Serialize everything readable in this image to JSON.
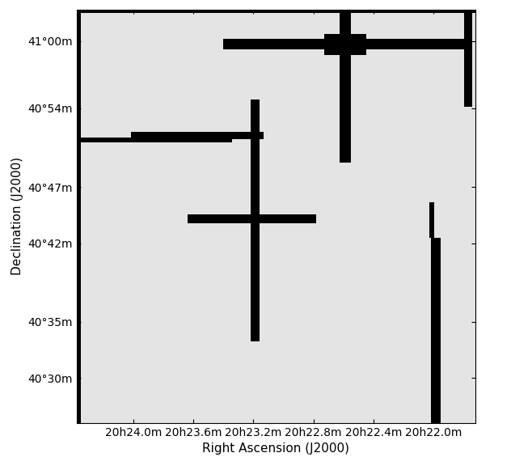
{
  "chart_data": {
    "type": "image",
    "xlabel": "Right Ascension (J2000)",
    "ylabel": "Declination (J2000)",
    "color": "#e4e4e4",
    "xlim": [
      1224.379,
      1221.72
    ],
    "ylim": [
      40.4333,
      41.0467
    ],
    "xticks": [
      {
        "value": 1224.0,
        "label": "20h24.0m"
      },
      {
        "value": 1223.6,
        "label": "20h23.6m"
      },
      {
        "value": 1223.2,
        "label": "20h23.2m"
      },
      {
        "value": 1222.8,
        "label": "20h22.8m"
      },
      {
        "value": 1222.4,
        "label": "20h22.4m"
      },
      {
        "value": 1222.0,
        "label": "20h22.0m"
      }
    ],
    "yticks": [
      {
        "value": 41.0,
        "label": "41°00m"
      },
      {
        "value": 40.9,
        "label": "40°54m"
      },
      {
        "value": 40.7833,
        "label": "40°47m"
      },
      {
        "value": 40.7,
        "label": "40°42m"
      },
      {
        "value": 40.5833,
        "label": "40°35m"
      },
      {
        "value": 40.5,
        "label": "40°30m"
      }
    ],
    "masked_regions": [
      [
        1224.3896,
        1224.3532,
        40.4333,
        41.0467
      ],
      [
        1224.379,
        1221.72,
        41.0411,
        41.0467
      ],
      [
        1221.7922,
        1221.7403,
        40.9022,
        41.0467
      ],
      [
        1223.4026,
        1221.7558,
        40.9878,
        41.0033
      ],
      [
        1222.7273,
        1222.4467,
        40.9789,
        41.01
      ],
      [
        1222.6234,
        1222.5506,
        40.8189,
        41.0467
      ],
      [
        1224.3532,
        1223.3403,
        40.85,
        40.8567
      ],
      [
        1224.0156,
        1223.1325,
        40.8544,
        40.8656
      ],
      [
        1223.2208,
        1223.1584,
        40.5544,
        40.9133
      ],
      [
        1223.6364,
        1222.7792,
        40.73,
        40.7433
      ],
      [
        1222.0156,
        1221.9481,
        40.4333,
        40.7078
      ],
      [
        1222.026,
        1221.9948,
        40.7078,
        40.7611
      ]
    ]
  }
}
